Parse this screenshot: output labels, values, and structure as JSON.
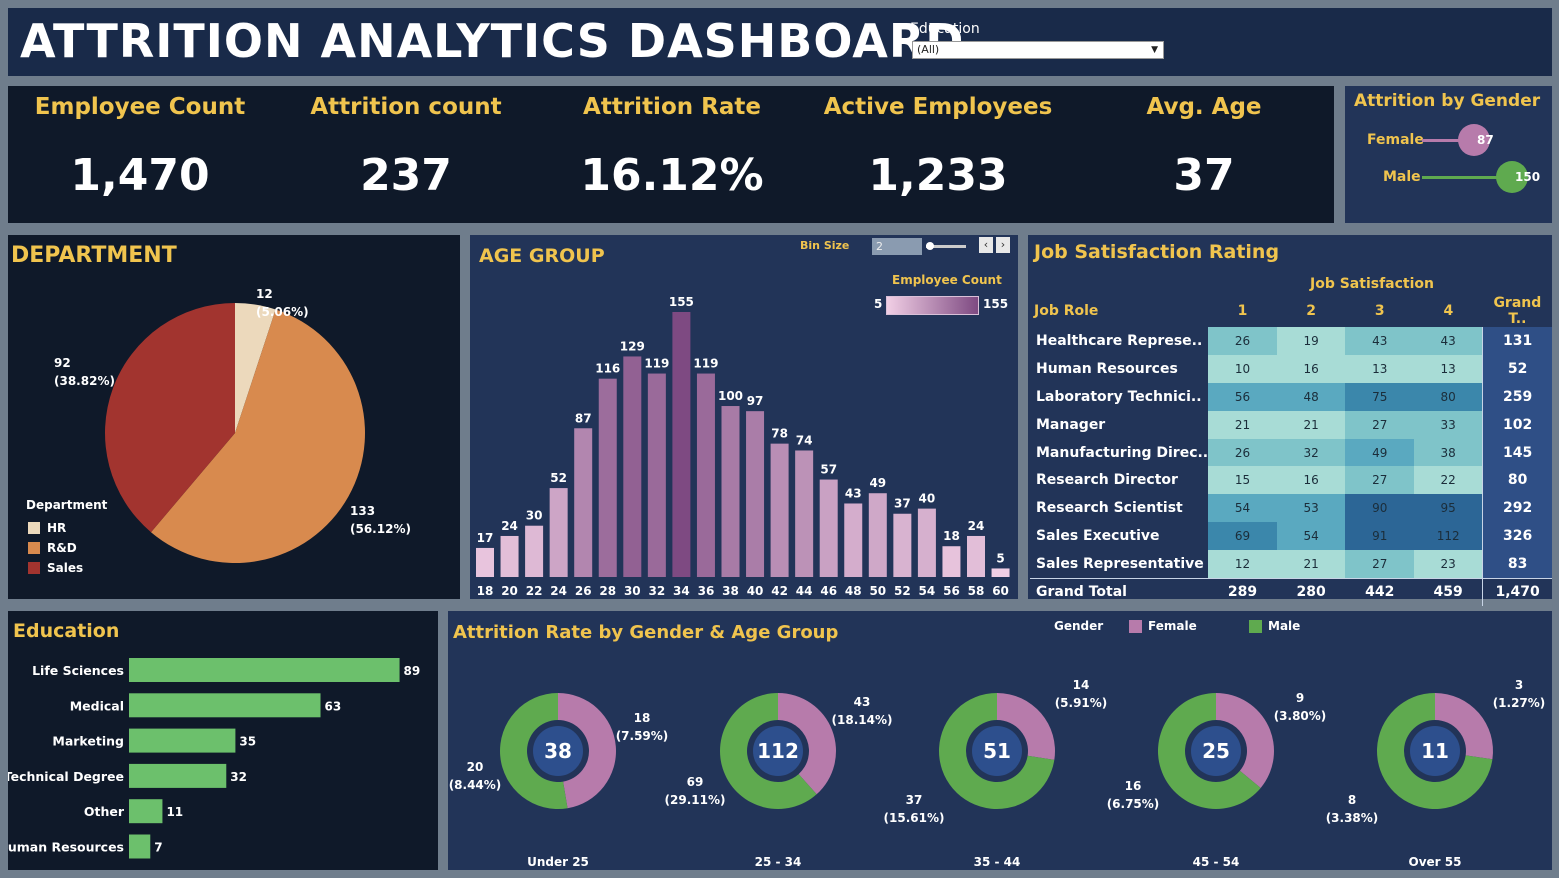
{
  "header": {
    "title": "ATTRITION ANALYTICS DASHBOARD",
    "filter_label": "Education",
    "filter_value": "(All)"
  },
  "kpis": [
    {
      "label": "Employee Count",
      "value": "1,470"
    },
    {
      "label": "Attrition count",
      "value": "237"
    },
    {
      "label": "Attrition Rate",
      "value": "16.12%"
    },
    {
      "label": "Active Employees",
      "value": "1,233"
    },
    {
      "label": "Avg. Age",
      "value": "37"
    }
  ],
  "gender_panel": {
    "title": "Attrition by Gender",
    "rows": [
      {
        "label": "Female",
        "value": 87,
        "color": "#b77bab"
      },
      {
        "label": "Male",
        "value": 150,
        "color": "#5faa4f"
      }
    ]
  },
  "age_panel": {
    "title": "AGE GROUP",
    "bin_label": "Bin Size",
    "bin_value": "2",
    "legend_title": "Employee Count",
    "legend_min": "5",
    "legend_max": "155"
  },
  "dept_panel": {
    "title": "DEPARTMENT",
    "legend_title": "Department"
  },
  "job_panel": {
    "title": "Job Satisfaction Rating",
    "col_group": "Job Satisfaction",
    "row_header": "Job Role",
    "columns": [
      "1",
      "2",
      "3",
      "4",
      "Grand T.."
    ],
    "rows": [
      {
        "role": "Healthcare Represe..",
        "values": [
          "26",
          "19",
          "43",
          "43"
        ],
        "total": "131"
      },
      {
        "role": "Human Resources",
        "values": [
          "10",
          "16",
          "13",
          "13"
        ],
        "total": "52"
      },
      {
        "role": "Laboratory Technici..",
        "values": [
          "56",
          "48",
          "75",
          "80"
        ],
        "total": "259"
      },
      {
        "role": "Manager",
        "values": [
          "21",
          "21",
          "27",
          "33"
        ],
        "total": "102"
      },
      {
        "role": "Manufacturing Direc..",
        "values": [
          "26",
          "32",
          "49",
          "38"
        ],
        "total": "145"
      },
      {
        "role": "Research Director",
        "values": [
          "15",
          "16",
          "27",
          "22"
        ],
        "total": "80"
      },
      {
        "role": "Research Scientist",
        "values": [
          "54",
          "53",
          "90",
          "95"
        ],
        "total": "292"
      },
      {
        "role": "Sales Executive",
        "values": [
          "69",
          "54",
          "91",
          "112"
        ],
        "total": "326"
      },
      {
        "role": "Sales Representative",
        "values": [
          "12",
          "21",
          "27",
          "23"
        ],
        "total": "83"
      }
    ],
    "grand_total_label": "Grand Total",
    "grand_totals": [
      "289",
      "280",
      "442",
      "459"
    ],
    "grand_total_all": "1,470"
  },
  "edu_panel": {
    "title": "Education"
  },
  "donut_panel": {
    "title": "Attrition Rate by Gender & Age Group",
    "legend_title": "Gender",
    "female_label": "Female",
    "male_label": "Male"
  },
  "chart_data": [
    {
      "type": "pie",
      "title": "DEPARTMENT",
      "slices": [
        {
          "label": "HR",
          "value": 12,
          "pct": "5.06%",
          "color": "#ecd9bc"
        },
        {
          "label": "R&D",
          "value": 133,
          "pct": "56.12%",
          "color": "#d88a4e"
        },
        {
          "label": "Sales",
          "value": 92,
          "pct": "38.82%",
          "color": "#a2342f"
        }
      ]
    },
    {
      "type": "bar",
      "title": "AGE GROUP",
      "categories": [
        "18",
        "20",
        "22",
        "24",
        "26",
        "28",
        "30",
        "32",
        "34",
        "36",
        "38",
        "40",
        "42",
        "44",
        "46",
        "48",
        "50",
        "52",
        "54",
        "56",
        "58",
        "60"
      ],
      "values": [
        17,
        24,
        30,
        52,
        87,
        116,
        129,
        119,
        155,
        119,
        100,
        97,
        78,
        74,
        57,
        43,
        49,
        37,
        40,
        18,
        24,
        5
      ],
      "ylim": [
        0,
        175
      ]
    },
    {
      "type": "bar",
      "orientation": "horizontal",
      "title": "Education",
      "categories": [
        "Life Sciences",
        "Medical",
        "Marketing",
        "Technical Degree",
        "Other",
        "Human Resources"
      ],
      "values": [
        89,
        63,
        35,
        32,
        11,
        7
      ],
      "color": "#6cc06c"
    },
    {
      "type": "pie",
      "title": "Attrition Rate by Gender & Age Group",
      "groups": [
        {
          "label": "Under 25",
          "total": 38,
          "female": 18,
          "female_pct": "7.59%",
          "male": 20,
          "male_pct": "8.44%"
        },
        {
          "label": "25 - 34",
          "total": 112,
          "female": 43,
          "female_pct": "18.14%",
          "male": 69,
          "male_pct": "29.11%"
        },
        {
          "label": "35 - 44",
          "total": 51,
          "female": 14,
          "female_pct": "5.91%",
          "male": 37,
          "male_pct": "15.61%"
        },
        {
          "label": "45 - 54",
          "total": 25,
          "female": 9,
          "female_pct": "3.80%",
          "male": 16,
          "male_pct": "6.75%"
        },
        {
          "label": "Over 55",
          "total": 11,
          "female": 3,
          "female_pct": "1.27%",
          "male": 8,
          "male_pct": "3.38%"
        }
      ],
      "colors": {
        "female": "#b77bab",
        "male": "#5faa4f"
      }
    }
  ]
}
